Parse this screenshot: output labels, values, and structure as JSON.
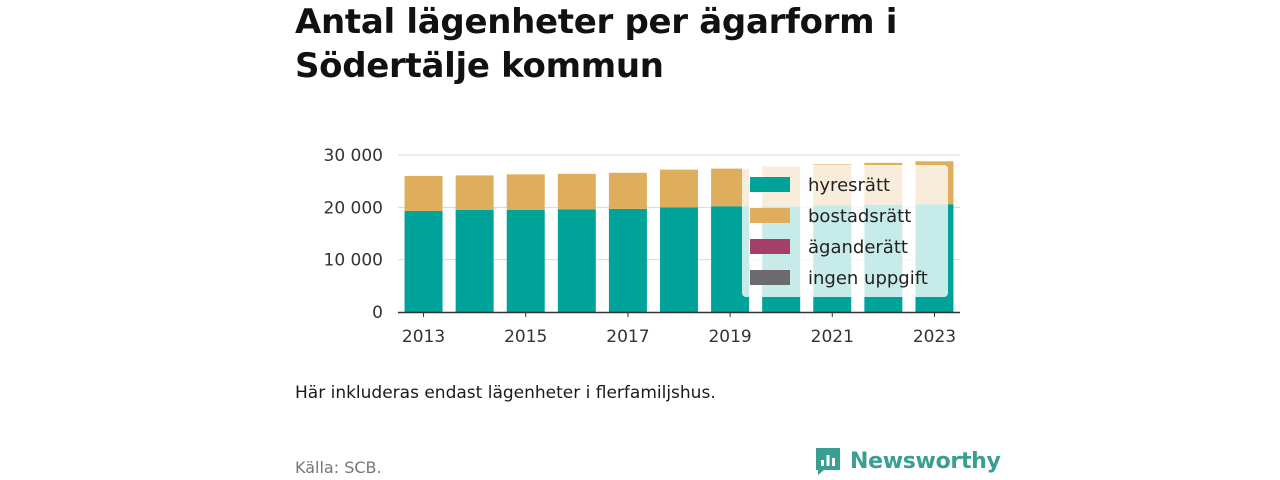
{
  "title": "Antal lägenheter per ägarform i Södertälje kommun",
  "note": "Här inkluderas endast lägenheter i flerfamiljshus.",
  "source": "Källa: SCB.",
  "brand": {
    "name": "Newsworthy",
    "color": "#3a9e91",
    "icon": "bar-chart-speech-icon"
  },
  "chart_data": {
    "type": "bar",
    "stacked": true,
    "categories": [
      "2013",
      "2014",
      "2015",
      "2016",
      "2017",
      "2018",
      "2019",
      "2020",
      "2021",
      "2022",
      "2023"
    ],
    "x_tick_labels": [
      "2013",
      "2015",
      "2017",
      "2019",
      "2021",
      "2023"
    ],
    "ylim": [
      0,
      30000
    ],
    "y_ticks": [
      0,
      10000,
      20000,
      30000
    ],
    "y_tick_labels": [
      "0",
      "10 000",
      "20 000",
      "30 000"
    ],
    "grid": true,
    "legend_position": "inside-right",
    "series": [
      {
        "name": "hyresrätt",
        "color": "#00a39a",
        "values": [
          19300,
          19500,
          19500,
          19600,
          19700,
          20000,
          20200,
          20200,
          20400,
          20500,
          20600
        ]
      },
      {
        "name": "bostadsrätt",
        "color": "#deae5d",
        "values": [
          6700,
          6600,
          6800,
          6800,
          6900,
          7200,
          7200,
          7600,
          7800,
          8000,
          8200
        ]
      },
      {
        "name": "äganderätt",
        "color": "#a53e69",
        "values": [
          0,
          0,
          0,
          0,
          0,
          0,
          0,
          0,
          0,
          0,
          0
        ]
      },
      {
        "name": "ingen uppgift",
        "color": "#6b6b6f",
        "values": [
          0,
          0,
          0,
          0,
          0,
          0,
          0,
          0,
          0,
          0,
          0
        ]
      }
    ]
  }
}
